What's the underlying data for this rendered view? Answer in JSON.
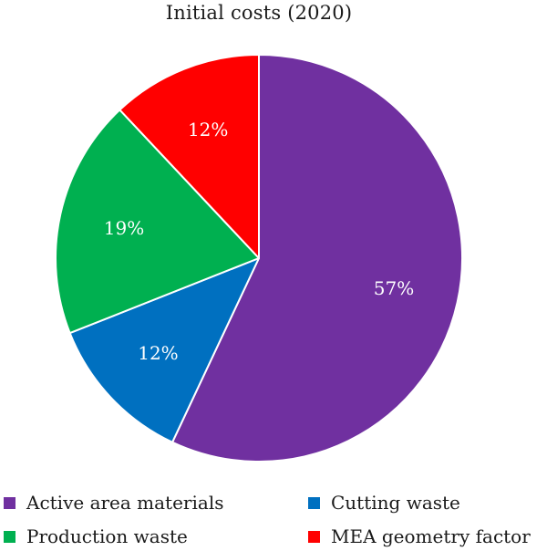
{
  "chart_data": {
    "type": "pie",
    "title": "Initial costs (2020)",
    "slices": [
      {
        "label": "Active area materials",
        "value": 57,
        "display": "57%",
        "color": "#7030a0"
      },
      {
        "label": "Cutting waste",
        "value": 12,
        "display": "12%",
        "color": "#0070c0"
      },
      {
        "label": "Production waste",
        "value": 19,
        "display": "19%",
        "color": "#00b050"
      },
      {
        "label": "MEA geometry factor",
        "value": 12,
        "display": "12%",
        "color": "#ff0000"
      }
    ],
    "legend": {
      "placement": "bottom",
      "entries": [
        {
          "label": "Active area materials",
          "color": "#7030a0"
        },
        {
          "label": "Cutting waste",
          "color": "#0070c0"
        },
        {
          "label": "Production waste",
          "color": "#00b050"
        },
        {
          "label": "MEA geometry factor",
          "color": "#ff0000"
        }
      ]
    }
  }
}
